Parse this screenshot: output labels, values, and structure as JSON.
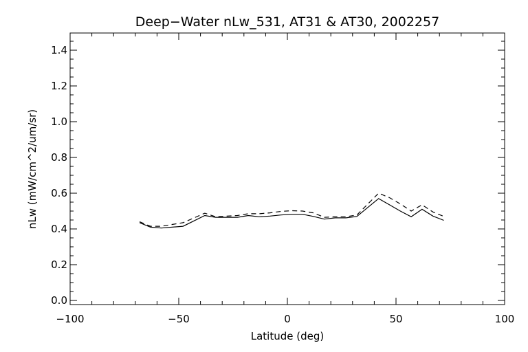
{
  "chart_data": {
    "type": "line",
    "title": "Deep−Water nLw_531, AT31 & AT30, 2002257",
    "xlabel": "Latitude (deg)",
    "ylabel": "nLw (mW/cm^2/um/sr)",
    "xlim": [
      -100,
      100
    ],
    "ylim": [
      0.0,
      1.5
    ],
    "xticks": [
      -100,
      -50,
      0,
      50,
      100
    ],
    "xtick_labels": [
      "−100",
      "−50",
      "0",
      "50",
      "100"
    ],
    "yticks": [
      0.0,
      0.2,
      0.4,
      0.6,
      0.8,
      1.0,
      1.2,
      1.4
    ],
    "ytick_labels": [
      "0.0",
      "0.2",
      "0.4",
      "0.6",
      "0.8",
      "1.0",
      "1.2",
      "1.4"
    ],
    "grid": false,
    "legend": "none",
    "series": [
      {
        "style": "solid",
        "x": [
          -68,
          -63,
          -58,
          -48,
          -38,
          -33,
          -23,
          -18,
          -13,
          -8,
          -3,
          2,
          7,
          12,
          17,
          22,
          27,
          32,
          42,
          47,
          52,
          57,
          62,
          67,
          72
        ],
        "y": [
          0.435,
          0.41,
          0.405,
          0.415,
          0.475,
          0.465,
          0.465,
          0.475,
          0.468,
          0.472,
          0.478,
          0.482,
          0.482,
          0.47,
          0.455,
          0.462,
          0.462,
          0.47,
          0.57,
          0.535,
          0.5,
          0.468,
          0.51,
          0.472,
          0.448
        ]
      },
      {
        "style": "dashed",
        "x": [
          -68,
          -63,
          -58,
          -48,
          -38,
          -33,
          -23,
          -18,
          -13,
          -8,
          -3,
          2,
          7,
          12,
          17,
          22,
          27,
          32,
          42,
          47,
          52,
          57,
          62,
          67,
          72
        ],
        "y": [
          0.44,
          0.415,
          0.415,
          0.435,
          0.488,
          0.468,
          0.475,
          0.485,
          0.485,
          0.49,
          0.498,
          0.502,
          0.5,
          0.49,
          0.465,
          0.468,
          0.468,
          0.478,
          0.6,
          0.575,
          0.54,
          0.5,
          0.535,
          0.495,
          0.47
        ]
      }
    ]
  }
}
